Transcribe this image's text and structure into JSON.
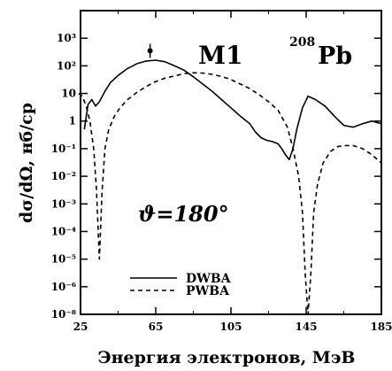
{
  "chart_data": {
    "type": "line",
    "xlabel": "Энергия электронов, МэВ",
    "ylabel": "dσ/dΩ, нб/ср",
    "xlim": [
      25,
      185
    ],
    "ylim_log10": [
      -8,
      3
    ],
    "y_scale": "log",
    "x_ticks": [
      "25",
      "65",
      "105",
      "145",
      "185"
    ],
    "y_ticks": [
      "10⁻⁸",
      "10⁻⁶",
      "10⁻⁵",
      "10⁻⁴",
      "10⁻³",
      "10⁻²",
      "10⁻¹",
      "1",
      "10",
      "10²",
      "10³"
    ],
    "annotations": {
      "multipole": "M1",
      "nucleus_mass": "208",
      "nucleus_symbol": "Pb",
      "angle": "ϑ=180°"
    },
    "legend": {
      "placement": "bottom-left"
    },
    "series": [
      {
        "name": "DWBA",
        "style": "solid",
        "x": [
          27,
          29,
          31,
          33,
          35,
          38,
          41,
          45,
          50,
          55,
          60,
          65,
          70,
          75,
          80,
          85,
          90,
          95,
          100,
          105,
          110,
          115,
          118,
          121,
          124,
          127,
          130,
          132,
          134,
          136,
          138,
          140,
          143,
          146,
          150,
          155,
          160,
          165,
          170,
          175,
          180,
          185
        ],
        "y": [
          0.05,
          0.4,
          0.6,
          0.35,
          0.5,
          1.2,
          2.5,
          4.5,
          8,
          12,
          15,
          16,
          14,
          10,
          7,
          4,
          2.2,
          1.2,
          0.6,
          0.3,
          0.15,
          0.08,
          0.04,
          0.025,
          0.02,
          0.018,
          0.015,
          0.01,
          0.006,
          0.004,
          0.01,
          0.05,
          0.3,
          0.8,
          0.6,
          0.35,
          0.15,
          0.07,
          0.06,
          0.08,
          0.1,
          0.08
        ]
      },
      {
        "name": "PWBA",
        "style": "dashed",
        "x": [
          24,
          26,
          28,
          30,
          32,
          33.5,
          35,
          36.5,
          38,
          40,
          43,
          46,
          50,
          55,
          60,
          65,
          70,
          75,
          80,
          85,
          90,
          95,
          100,
          105,
          110,
          115,
          120,
          125,
          130,
          135,
          138,
          141,
          143,
          144.5,
          146,
          147.5,
          149,
          151,
          154,
          158,
          162,
          166,
          170,
          175,
          180,
          185
        ],
        "y": [
          1,
          0.8,
          0.35,
          0.1,
          0.01,
          0.0003,
          1e-06,
          0.0003,
          0.01,
          0.05,
          0.15,
          0.3,
          0.6,
          1.1,
          1.8,
          2.7,
          3.6,
          4.3,
          5.2,
          5.6,
          5.5,
          4.9,
          4.1,
          3.2,
          2.2,
          1.5,
          0.9,
          0.5,
          0.25,
          0.06,
          0.01,
          0.001,
          5e-05,
          3e-07,
          1e-08,
          3e-07,
          5e-05,
          0.0005,
          0.003,
          0.008,
          0.012,
          0.013,
          0.013,
          0.01,
          0.006,
          0.003
        ]
      }
    ],
    "data_point": {
      "x": 62,
      "y": 35
    }
  }
}
